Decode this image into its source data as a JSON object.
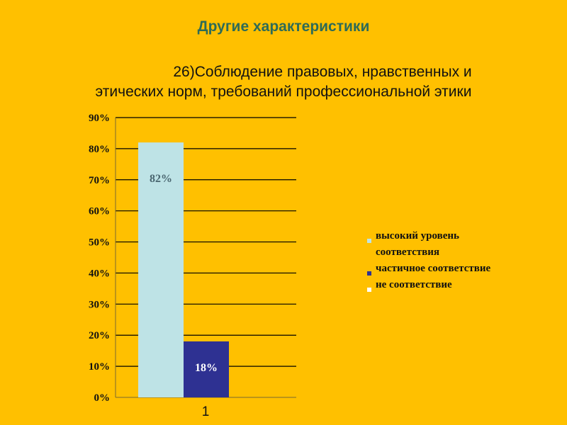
{
  "heading": "Другие характеристики",
  "subtitle_line1": "26)Соблюдение правовых, нравственных и",
  "subtitle_line2": "этических норм, требований  профессиональной этики",
  "chart_data": {
    "type": "bar",
    "categories": [
      "1"
    ],
    "series": [
      {
        "name": "высокий уровень соответствия",
        "values": [
          82
        ],
        "color": "#BEE3E6",
        "label": "82%"
      },
      {
        "name": "частичное соответствие",
        "values": [
          18
        ],
        "color": "#2E3192",
        "label": "18%"
      },
      {
        "name": "не соответствие",
        "values": [
          0
        ],
        "color": "#FFFFFF",
        "label": ""
      }
    ],
    "yticks": [
      "0%",
      "10%",
      "20%",
      "30%",
      "40%",
      "50%",
      "60%",
      "70%",
      "80%",
      "90%"
    ],
    "ylim": [
      0,
      90
    ],
    "grid": true,
    "legend_position": "right"
  }
}
